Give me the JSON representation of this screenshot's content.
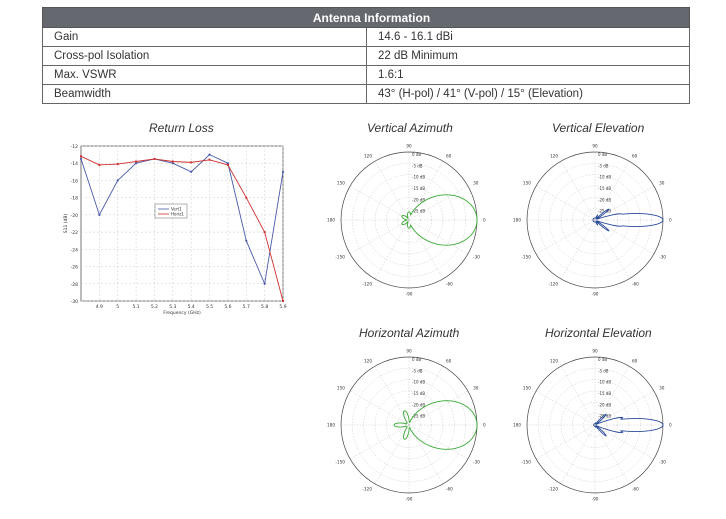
{
  "table": {
    "title": "Antenna Information",
    "rows": [
      {
        "label": "Gain",
        "value": "14.6 - 16.1 dBi"
      },
      {
        "label": "Cross-pol Isolation",
        "value": "22 dB Minimum"
      },
      {
        "label": "Max. VSWR",
        "value": "1.6:1"
      },
      {
        "label": "Beamwidth",
        "value": "43° (H-pol) / 41° (V-pol) / 15° (Elevation)"
      }
    ]
  },
  "charts": {
    "return_loss_title": "Return Loss",
    "vert_az_title": "Vertical Azimuth",
    "vert_el_title": "Vertical Elevation",
    "horiz_az_title": "Horizontal Azimuth",
    "horiz_el_title": "Horizontal Elevation",
    "polar_labels": {
      "top": "90",
      "tr": "60",
      "tl": "120",
      "r": "0",
      "l": "180",
      "br": "-30",
      "bl": "-150",
      "bot": "-90",
      "tr2": "30",
      "tl2": "150",
      "br2": "-60",
      "bl2": "-120"
    },
    "polar_rings": [
      "0 dB",
      "-5 dB",
      "-10 dB",
      "-15 dB",
      "-20 dB",
      "-25 dB"
    ]
  },
  "chart_data": {
    "type": "line",
    "title": "Return Loss",
    "xlabel": "Frequency (GHz)",
    "ylabel": "S11 (dB)",
    "x": [
      4.8,
      4.9,
      5.0,
      5.1,
      5.2,
      5.3,
      5.4,
      5.5,
      5.6,
      5.7,
      5.8,
      5.9
    ],
    "x_ticks": [
      "4.9",
      "5",
      "5.1",
      "5.2",
      "5.3",
      "5.4",
      "5.5",
      "5.6",
      "5.7",
      "5.8",
      "5.9"
    ],
    "y_ticks": [
      "-12",
      "-14",
      "-16",
      "-18",
      "-20",
      "-22",
      "-24",
      "-26",
      "-28",
      "-30"
    ],
    "ylim": [
      -30,
      -12
    ],
    "series": [
      {
        "name": "Vert1",
        "color": "#4a5aa8",
        "values": [
          -13.5,
          -20,
          -16,
          -14,
          -13.5,
          -14,
          -15,
          -13,
          -14,
          -23,
          -28,
          -15
        ]
      },
      {
        "name": "Horiz1",
        "color": "#d03030",
        "values": [
          -13.2,
          -14.2,
          -14.1,
          -13.8,
          -13.5,
          -13.8,
          -13.9,
          -13.6,
          -14.2,
          -18,
          -22,
          -30
        ]
      }
    ],
    "legend": "center"
  }
}
